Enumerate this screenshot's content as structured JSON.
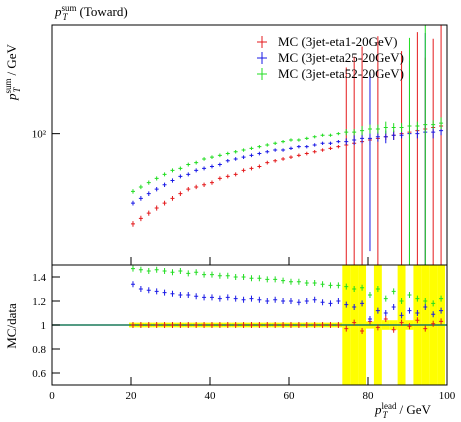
{
  "chart_data": [
    {
      "type": "scatter",
      "title": {
        "symbol": "p",
        "sub": "T",
        "sup": "sum",
        "text": "(Toward)"
      },
      "y_label": {
        "symbol": "p",
        "sub": "T",
        "sup": "sum",
        "text": "/ GeV"
      },
      "log_y": true,
      "legend": "top-right",
      "x": [
        20.5,
        22.5,
        24.5,
        26.5,
        28.5,
        30.5,
        32.5,
        34.5,
        36.5,
        38.5,
        40.5,
        42.5,
        44.5,
        46.5,
        48.5,
        50.5,
        52.5,
        54.5,
        56.5,
        58.5,
        60.5,
        62.5,
        64.5,
        66.5,
        68.5,
        70.5,
        72.5,
        74.5,
        76.5,
        78.5,
        80.5,
        82.5,
        84.5,
        86.5,
        88.5,
        90.5,
        92.5,
        94.5,
        96.5,
        98.5
      ],
      "series": [
        {
          "name": "MC (3jet-eta1-20GeV)",
          "color": "#e41a1c",
          "values": [
            56,
            58,
            60,
            62,
            64,
            66,
            68,
            70,
            71,
            72,
            73,
            75,
            76,
            77,
            79,
            80,
            81,
            83,
            84,
            85,
            86,
            87,
            88,
            89,
            90,
            91,
            92,
            93,
            94,
            95,
            96,
            97,
            98,
            99,
            100,
            101,
            102,
            103,
            104,
            105
          ],
          "errors": [
            1,
            1,
            1,
            1,
            1,
            1,
            1,
            1,
            1,
            1,
            1,
            1,
            1,
            1,
            1,
            1,
            1,
            1,
            1,
            1,
            1,
            1,
            1,
            1,
            1,
            1,
            1,
            60,
            70,
            80,
            3,
            90,
            2,
            3,
            70,
            4,
            90,
            60,
            80,
            100
          ]
        },
        {
          "name": "MC (3jet-eta25-20GeV)",
          "color": "#1a1ae6",
          "values": [
            64,
            66,
            68,
            70,
            72,
            74,
            76,
            77,
            79,
            80,
            81,
            82,
            84,
            85,
            86,
            87,
            88,
            89,
            90,
            90,
            91,
            92,
            92,
            93,
            94,
            94,
            95,
            95,
            96,
            97,
            97,
            98,
            98,
            99,
            99,
            100,
            100,
            101,
            101,
            102
          ],
          "errors": [
            1,
            1,
            1,
            1,
            1,
            1,
            1,
            1,
            1,
            1,
            1,
            1,
            1,
            1,
            1,
            1,
            1,
            1,
            1,
            1,
            1,
            1,
            1,
            1,
            1,
            1,
            1,
            2,
            3,
            3,
            50,
            3,
            4,
            3,
            2,
            60,
            3,
            90,
            4,
            3
          ]
        },
        {
          "name": "MC (3jet-eta52-20GeV)",
          "color": "#22dd22",
          "values": [
            69,
            71,
            73,
            75,
            77,
            79,
            80,
            82,
            83,
            85,
            86,
            87,
            88,
            89,
            90,
            91,
            92,
            93,
            94,
            95,
            96,
            96,
            97,
            98,
            99,
            99,
            100,
            101,
            101,
            102,
            103,
            103,
            104,
            104,
            104,
            105,
            105,
            106,
            106,
            107
          ],
          "errors": [
            1,
            1,
            1,
            1,
            1,
            1,
            1,
            1,
            1,
            1,
            1,
            1,
            1,
            1,
            1,
            1,
            1,
            1,
            1,
            1,
            1,
            1,
            1,
            1,
            1,
            1,
            1,
            2,
            2,
            3,
            3,
            3,
            4,
            3,
            3,
            80,
            3,
            100,
            3,
            4
          ]
        }
      ],
      "xlim": [
        0,
        100
      ],
      "ylim": [
        43,
        201
      ],
      "yticks": [
        {
          "value": 100,
          "label": "10²"
        }
      ]
    },
    {
      "type": "ratio",
      "y_label": "MC/data",
      "x_label": {
        "symbol": "p",
        "sub": "T",
        "sup": "lead",
        "text": "/ GeV"
      },
      "reference_color": "#1b7a5a",
      "band_color": "#ffff00",
      "band_errors": [
        0.02,
        0.02,
        0.02,
        0.02,
        0.02,
        0.02,
        0.02,
        0.02,
        0.02,
        0.02,
        0.02,
        0.02,
        0.02,
        0.02,
        0.02,
        0.02,
        0.02,
        0.02,
        0.02,
        0.02,
        0.02,
        0.02,
        0.02,
        0.02,
        0.02,
        0.02,
        0.02,
        0.5,
        0.5,
        0.5,
        0.03,
        0.5,
        0.04,
        0.04,
        0.5,
        0.04,
        0.5,
        0.5,
        0.5,
        0.5
      ],
      "x": [
        20.5,
        22.5,
        24.5,
        26.5,
        28.5,
        30.5,
        32.5,
        34.5,
        36.5,
        38.5,
        40.5,
        42.5,
        44.5,
        46.5,
        48.5,
        50.5,
        52.5,
        54.5,
        56.5,
        58.5,
        60.5,
        62.5,
        64.5,
        66.5,
        68.5,
        70.5,
        72.5,
        74.5,
        76.5,
        78.5,
        80.5,
        82.5,
        84.5,
        86.5,
        88.5,
        90.5,
        92.5,
        94.5,
        96.5,
        98.5
      ],
      "series": [
        {
          "color": "#e41a1c",
          "values": [
            1,
            1,
            1,
            1,
            1,
            1,
            1,
            1,
            1,
            1,
            1,
            1,
            1,
            1,
            1,
            1,
            1,
            1,
            1,
            1,
            1,
            1,
            1,
            1,
            1,
            1,
            1,
            0.97,
            1.02,
            0.95,
            1.03,
            0.98,
            1.05,
            0.96,
            1.02,
            0.99,
            1.04,
            0.97,
            1.01,
            1.03
          ]
        },
        {
          "color": "#1a1ae6",
          "values": [
            1.34,
            1.3,
            1.29,
            1.28,
            1.27,
            1.26,
            1.25,
            1.25,
            1.24,
            1.23,
            1.23,
            1.22,
            1.23,
            1.22,
            1.21,
            1.22,
            1.21,
            1.2,
            1.21,
            1.2,
            1.2,
            1.19,
            1.2,
            1.21,
            1.19,
            1.18,
            1.2,
            1.17,
            1.15,
            1.18,
            1.05,
            1.12,
            1.1,
            1.15,
            1.08,
            1.12,
            1.1,
            1.15,
            1.09,
            1.12
          ]
        },
        {
          "color": "#22dd22",
          "values": [
            1.47,
            1.46,
            1.45,
            1.46,
            1.45,
            1.44,
            1.45,
            1.43,
            1.44,
            1.42,
            1.42,
            1.41,
            1.41,
            1.4,
            1.4,
            1.39,
            1.39,
            1.38,
            1.38,
            1.37,
            1.36,
            1.36,
            1.35,
            1.35,
            1.34,
            1.33,
            1.33,
            1.32,
            1.3,
            1.31,
            1.25,
            1.3,
            1.22,
            1.28,
            1.2,
            1.25,
            1.22,
            1.2,
            1.18,
            1.22
          ]
        }
      ],
      "xlim": [
        0,
        100
      ],
      "xticks": [
        0,
        20,
        40,
        60,
        80,
        100
      ],
      "ylim": [
        0.5,
        1.5
      ],
      "yticks": [
        0.6,
        0.8,
        1,
        1.2,
        1.4
      ]
    }
  ]
}
